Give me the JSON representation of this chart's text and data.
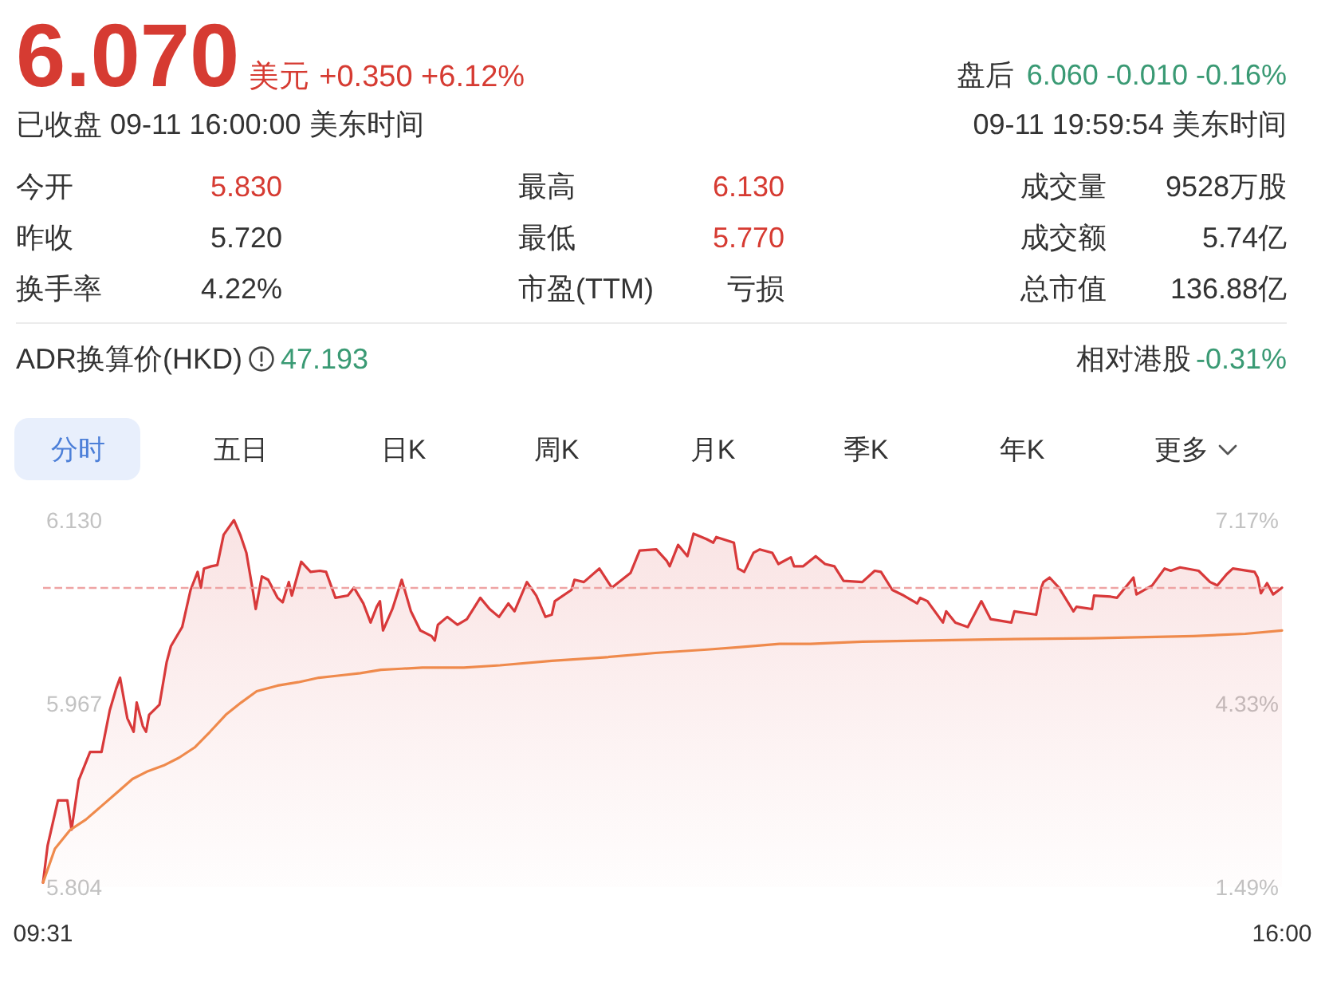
{
  "chart_data": {
    "type": "area",
    "xlim": [
      9.517,
      16
    ],
    "xticks": [
      {
        "value": 9.517,
        "label": "09:31"
      },
      {
        "value": 16,
        "label": "16:00"
      }
    ],
    "ylim": [
      5.804,
      6.13
    ],
    "yticks": [
      5.804,
      5.967,
      {
        "value": 6.13,
        "label": "6.130"
      }
    ],
    "y2lim": [
      1.49,
      7.17
    ],
    "y2ticks": [
      {
        "value": 1.49,
        "label": "1.49%"
      },
      {
        "value": 4.33,
        "label": "4.33%"
      },
      {
        "value": 7.17,
        "label": "7.17%"
      }
    ],
    "grid": false,
    "marker": "none",
    "ref_lines": [
      {
        "axis": "y",
        "value": 6.07,
        "color": "#eea3a3",
        "line_style": "dashed"
      }
    ],
    "series": [
      {
        "color": "#d8393a",
        "x": [
          9.517,
          9.541,
          9.595,
          9.644,
          9.666,
          9.704,
          9.763,
          9.823,
          9.866,
          9.899,
          9.92,
          9.958,
          9.991,
          10.007,
          10.039,
          10.056,
          10.072,
          10.126,
          10.164,
          10.186,
          10.245,
          10.289,
          10.326,
          10.343,
          10.359,
          10.397,
          10.429,
          10.462,
          10.516,
          10.549,
          10.581,
          10.614,
          10.63,
          10.662,
          10.695,
          10.744,
          10.771,
          10.803,
          10.819,
          10.868,
          10.917,
          10.966,
          10.998,
          11.047,
          11.112,
          11.144,
          11.193,
          11.231,
          11.263,
          11.28,
          11.296,
          11.345,
          11.394,
          11.442,
          11.491,
          11.55,
          11.567,
          11.583,
          11.632,
          11.686,
          11.735,
          11.805,
          11.854,
          11.903,
          11.952,
          11.984,
          12.049,
          12.098,
          12.146,
          12.179,
          12.195,
          12.282,
          12.298,
          12.347,
          12.428,
          12.493,
          12.591,
          12.639,
          12.726,
          12.78,
          12.796,
          12.84,
          12.889,
          12.921,
          12.991,
          13.024,
          13.04,
          13.132,
          13.154,
          13.186,
          13.235,
          13.268,
          13.333,
          13.365,
          13.43,
          13.447,
          13.495,
          13.56,
          13.609,
          13.658,
          13.706,
          13.804,
          13.869,
          13.902,
          13.961,
          14.021,
          14.091,
          14.107,
          14.145,
          14.226,
          14.243,
          14.291,
          14.356,
          14.427,
          14.476,
          14.584,
          14.6,
          14.714,
          14.741,
          14.752,
          14.784,
          14.833,
          14.909,
          14.925,
          15.006,
          15.017,
          15.104,
          15.137,
          15.223,
          15.239,
          15.321,
          15.386,
          15.418,
          15.467,
          15.564,
          15.624,
          15.662,
          15.711,
          15.743,
          15.857,
          15.873,
          15.89,
          15.922,
          15.954,
          16
        ],
        "values": [
          5.808,
          5.841,
          5.881,
          5.881,
          5.855,
          5.899,
          5.924,
          5.924,
          5.961,
          5.98,
          5.99,
          5.954,
          5.942,
          5.968,
          5.947,
          5.942,
          5.957,
          5.966,
          6.004,
          6.018,
          6.035,
          6.068,
          6.084,
          6.07,
          6.087,
          6.089,
          6.09,
          6.117,
          6.13,
          6.117,
          6.101,
          6.068,
          6.051,
          6.08,
          6.077,
          6.061,
          6.057,
          6.075,
          6.063,
          6.093,
          6.084,
          6.085,
          6.084,
          6.061,
          6.063,
          6.07,
          6.056,
          6.039,
          6.053,
          6.058,
          6.032,
          6.051,
          6.077,
          6.049,
          6.032,
          6.027,
          6.023,
          6.037,
          6.044,
          6.037,
          6.042,
          6.061,
          6.051,
          6.044,
          6.056,
          6.049,
          6.075,
          6.063,
          6.044,
          6.046,
          6.058,
          6.068,
          6.077,
          6.075,
          6.087,
          6.07,
          6.083,
          6.103,
          6.104,
          6.094,
          6.089,
          6.108,
          6.098,
          6.118,
          6.113,
          6.11,
          6.115,
          6.11,
          6.087,
          6.084,
          6.101,
          6.104,
          6.101,
          6.091,
          6.097,
          6.089,
          6.089,
          6.098,
          6.091,
          6.089,
          6.076,
          6.075,
          6.085,
          6.084,
          6.068,
          6.063,
          6.056,
          6.061,
          6.058,
          6.039,
          6.049,
          6.039,
          6.035,
          6.058,
          6.042,
          6.039,
          6.049,
          6.046,
          6.07,
          6.075,
          6.079,
          6.07,
          6.049,
          6.053,
          6.051,
          6.063,
          6.062,
          6.061,
          6.079,
          6.064,
          6.072,
          6.087,
          6.085,
          6.088,
          6.085,
          6.075,
          6.072,
          6.082,
          6.087,
          6.084,
          6.079,
          6.065,
          6.074,
          6.064,
          6.07
        ]
      },
      {
        "type": "line",
        "color": "#ef8a4c",
        "x": [
          9.517,
          9.579,
          9.66,
          9.741,
          9.823,
          9.904,
          9.985,
          10.066,
          10.148,
          10.229,
          10.31,
          10.391,
          10.473,
          10.554,
          10.635,
          10.744,
          10.852,
          10.96,
          11.069,
          11.177,
          11.285,
          11.394,
          11.502,
          11.719,
          11.908,
          12.179,
          12.45,
          12.721,
          12.992,
          13.154,
          13.371,
          13.533,
          13.804,
          14.454,
          14.996,
          15.537,
          15.808,
          16
        ],
        "values": [
          5.808,
          5.838,
          5.855,
          5.864,
          5.876,
          5.888,
          5.9,
          5.907,
          5.912,
          5.919,
          5.928,
          5.942,
          5.957,
          5.968,
          5.978,
          5.983,
          5.986,
          5.99,
          5.992,
          5.994,
          5.997,
          5.998,
          5.999,
          5.999,
          6.001,
          6.005,
          6.008,
          6.012,
          6.015,
          6.017,
          6.02,
          6.02,
          6.022,
          6.024,
          6.025,
          6.027,
          6.029,
          6.032
        ]
      }
    ],
    "annotations": [
      "6.070",
      "美元",
      "+0.350 +6.12%",
      "盘后",
      "6.060 -0.010 -0.16%",
      "已收盘 09-11 16:00:00 美东时间",
      "09-11 19:59:54 美东时间",
      "今开",
      "5.830",
      "最高",
      "6.130",
      "成交量",
      "9528万股",
      "昨收",
      "5.720",
      "最低",
      "5.770",
      "成交额",
      "5.74亿",
      "换手率",
      "4.22%",
      "市盈(TTM)",
      "亏损",
      "总市值",
      "136.88亿",
      "ADR换算价(HKD)",
      "47.193",
      "相对港股",
      "-0.31%",
      "分时",
      "五日",
      "日K",
      "周K",
      "月K",
      "季K",
      "年K",
      "更多"
    ]
  }
}
